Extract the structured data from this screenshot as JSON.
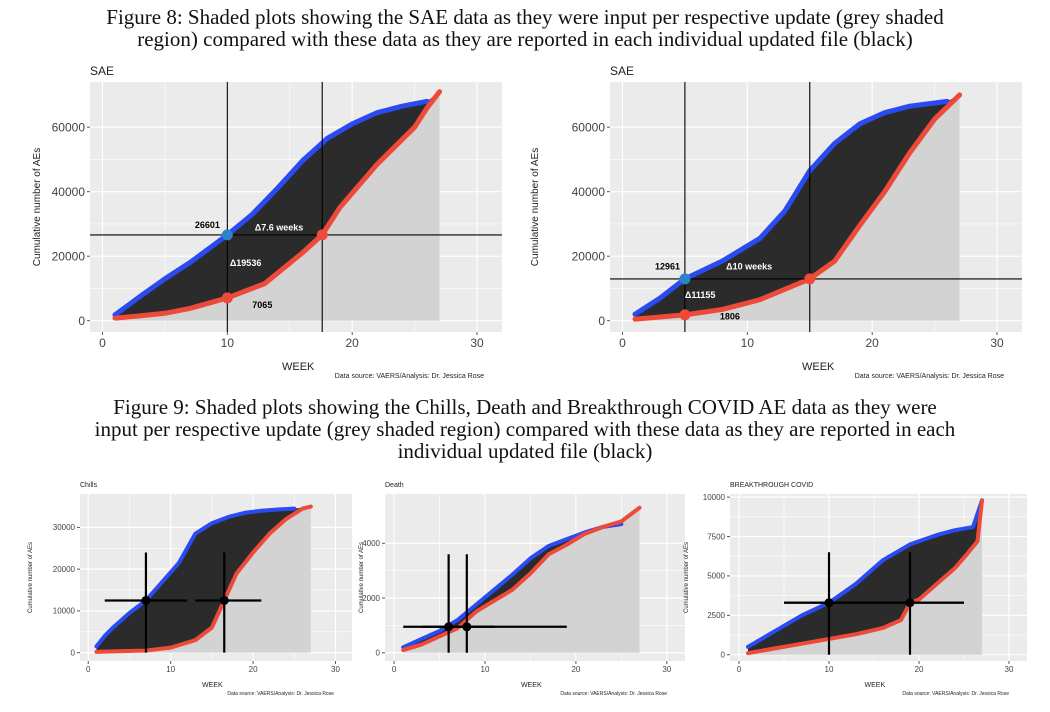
{
  "figure8": {
    "caption_lines": [
      "Figure 8:  Shaded plots showing the SAE data as they were input per respective update (grey shaded",
      "region) compared with these data as they are reported in each individual updated file (black)"
    ]
  },
  "figure9": {
    "caption_lines": [
      "Figure 9:  Shaded plots showing the Chills, Death and Breakthrough COVID AE data as they were",
      "input per respective update (grey shaded region) compared with these data as they are reported in each",
      "individual updated file (black)"
    ]
  },
  "colors": {
    "panel_bg": "#ebebeb",
    "grid": "#ffffff",
    "shade": "#d3d3d3",
    "dark_fill": "#2b2b2b",
    "blue": "#2b4bf2",
    "red": "#ee4a3a",
    "blue_point": "#2d83c8",
    "red_point": "#ee4a3a",
    "black": "#000000"
  },
  "chart_data": [
    {
      "type": "area",
      "title": "SAE",
      "xlabel": "WEEK",
      "ylabel": "Cumulative number of AEs",
      "source": "Data source: VAERS/Analysis: Dr. Jessica Rose",
      "xlim": [
        -1,
        32
      ],
      "ylim": [
        -3500,
        74000
      ],
      "xticks": [
        0,
        10,
        20,
        30
      ],
      "xtick_labels": [
        "0",
        "10",
        "20",
        "30"
      ],
      "yticks": [
        0,
        20000,
        40000,
        60000
      ],
      "ytick_labels": [
        "0",
        "20000",
        "40000",
        "60000"
      ],
      "grey_region": {
        "x": [
          1,
          3,
          5,
          7,
          10,
          13,
          16,
          19,
          22,
          25,
          27,
          27
        ],
        "y": [
          800,
          1500,
          2300,
          3800,
          7065,
          11500,
          21000,
          35000,
          48500,
          60000,
          70000,
          0
        ]
      },
      "input_series": {
        "name": "as input per update",
        "x": [
          1,
          3,
          5,
          7,
          10,
          12,
          14,
          16,
          18,
          20,
          22,
          24,
          26
        ],
        "y": [
          1800,
          7500,
          13000,
          18000,
          26601,
          33000,
          41000,
          49500,
          56500,
          61000,
          64500,
          66500,
          68000
        ]
      },
      "reported_series": {
        "name": "as reported in file",
        "x": [
          1,
          3,
          5,
          7,
          10,
          13,
          16,
          17.6,
          19,
          22,
          25,
          26,
          27
        ],
        "y": [
          800,
          1500,
          2300,
          3800,
          7065,
          11500,
          21000,
          26601,
          35000,
          48500,
          60000,
          66000,
          71000
        ]
      },
      "vlines": [
        10,
        17.6
      ],
      "hlines": [
        26601
      ],
      "points": [
        {
          "x": 10,
          "y": 26601,
          "color": "blue"
        },
        {
          "x": 17.6,
          "y": 26601,
          "color": "red"
        },
        {
          "x": 10,
          "y": 7065,
          "color": "red"
        }
      ],
      "annotations": [
        {
          "text": "26601",
          "x": 7.4,
          "y": 28700,
          "color": "black"
        },
        {
          "text": "Δ7.6 weeks",
          "x": 12.2,
          "y": 28000,
          "color": "white"
        },
        {
          "text": "Δ19536",
          "x": 10.2,
          "y": 17000,
          "color": "white"
        },
        {
          "text": "7065",
          "x": 12.0,
          "y": 4000,
          "color": "black"
        }
      ]
    },
    {
      "type": "area",
      "title": "SAE",
      "xlabel": "WEEK",
      "ylabel": "Cumulative number of AEs",
      "source": "Data source: VAERS/Analysis: Dr. Jessica Rose",
      "xlim": [
        -1,
        32
      ],
      "ylim": [
        -3500,
        74000
      ],
      "xticks": [
        0,
        10,
        20,
        30
      ],
      "xtick_labels": [
        "0",
        "10",
        "20",
        "30"
      ],
      "yticks": [
        0,
        20000,
        40000,
        60000
      ],
      "ytick_labels": [
        "0",
        "20000",
        "40000",
        "60000"
      ],
      "grey_region": {
        "x": [
          1,
          5,
          8,
          11,
          15,
          17,
          19,
          21,
          23,
          25,
          27,
          27
        ],
        "y": [
          500,
          1806,
          3500,
          6500,
          12961,
          18500,
          29500,
          40000,
          52000,
          62500,
          70000,
          0
        ]
      },
      "input_series": {
        "name": "as input per update",
        "x": [
          1,
          3,
          5,
          8,
          11,
          13,
          15,
          17,
          19,
          21,
          23,
          25,
          26
        ],
        "y": [
          2000,
          7000,
          12961,
          18500,
          25500,
          34000,
          46500,
          55000,
          61000,
          64500,
          66500,
          67500,
          68000
        ]
      },
      "reported_series": {
        "name": "as reported in file",
        "x": [
          1,
          5,
          8,
          11,
          15,
          17,
          19,
          21,
          23,
          25,
          27
        ],
        "y": [
          500,
          1806,
          3500,
          6500,
          12961,
          18500,
          29500,
          40000,
          52000,
          62500,
          70000
        ]
      },
      "vlines": [
        5,
        15
      ],
      "hlines": [
        12961
      ],
      "points": [
        {
          "x": 5,
          "y": 12961,
          "color": "blue"
        },
        {
          "x": 15,
          "y": 12961,
          "color": "red"
        },
        {
          "x": 5,
          "y": 1806,
          "color": "red"
        }
      ],
      "annotations": [
        {
          "text": "12961",
          "x": 2.6,
          "y": 15800,
          "color": "black"
        },
        {
          "text": "Δ10 weeks",
          "x": 8.3,
          "y": 15800,
          "color": "white"
        },
        {
          "text": "Δ11155",
          "x": 5.0,
          "y": 7000,
          "color": "white"
        },
        {
          "text": "1806",
          "x": 7.8,
          "y": 400,
          "color": "black"
        }
      ]
    },
    {
      "type": "area",
      "title": "Chills",
      "xlabel": "WEEK",
      "ylabel": "Cumulative number of AEs",
      "source": "Data source: VAERS/Analysis: Dr. Jessica Rose",
      "xlim": [
        -1,
        32
      ],
      "ylim": [
        -2000,
        38000
      ],
      "xticks": [
        0,
        10,
        20,
        30
      ],
      "xtick_labels": [
        "0",
        "10",
        "20",
        "30"
      ],
      "yticks": [
        0,
        10000,
        20000,
        30000
      ],
      "ytick_labels": [
        "0",
        "10000",
        "20000",
        "30000"
      ],
      "grey_region": {
        "x": [
          1,
          3,
          7,
          10,
          13,
          15,
          16.5,
          18,
          20,
          22,
          24,
          26,
          27,
          27
        ],
        "y": [
          200,
          300,
          500,
          1200,
          3000,
          6000,
          12500,
          19000,
          24000,
          28500,
          32000,
          34500,
          35000,
          0
        ]
      },
      "input_series": {
        "name": "as input per update",
        "x": [
          1,
          2,
          3,
          5,
          7,
          9,
          11,
          13,
          15,
          17,
          19,
          21,
          23,
          25
        ],
        "y": [
          1500,
          4000,
          6000,
          9500,
          12500,
          17000,
          21500,
          28500,
          31000,
          32500,
          33500,
          34000,
          34300,
          34500
        ]
      },
      "reported_series": {
        "name": "as reported in file",
        "x": [
          1,
          3,
          7,
          10,
          13,
          15,
          16.5,
          18,
          20,
          22,
          24,
          26,
          27
        ],
        "y": [
          200,
          300,
          500,
          1200,
          3000,
          6000,
          12500,
          19000,
          24000,
          28500,
          32000,
          34500,
          35000
        ]
      },
      "crosshairs": [
        {
          "x": 7,
          "y": 12500,
          "xrange": [
            2,
            12
          ],
          "yrange": [
            0,
            24000
          ]
        },
        {
          "x": 16.5,
          "y": 12500,
          "xrange": [
            13,
            21
          ],
          "yrange": [
            0,
            24000
          ]
        }
      ]
    },
    {
      "type": "area",
      "title": "Death",
      "xlabel": "WEEK",
      "ylabel": "Cumulative number of AEs",
      "source": "Data source: VAERS/Analysis: Dr. Jessica Rose",
      "xlim": [
        -1,
        32
      ],
      "ylim": [
        -300,
        5800
      ],
      "xticks": [
        0,
        10,
        20,
        30
      ],
      "xtick_labels": [
        "0",
        "10",
        "20",
        "30"
      ],
      "yticks": [
        0,
        2000,
        4000
      ],
      "ytick_labels": [
        "0",
        "2000",
        "4000"
      ],
      "grey_region": {
        "x": [
          1,
          3,
          5,
          7,
          9,
          11,
          13,
          15,
          17,
          19,
          21,
          23,
          25,
          27,
          27
        ],
        "y": [
          100,
          300,
          600,
          900,
          1500,
          1900,
          2300,
          2900,
          3600,
          3950,
          4350,
          4600,
          4800,
          5300,
          0
        ]
      },
      "input_series": {
        "name": "as input per update",
        "x": [
          1,
          3,
          5,
          7,
          9,
          11,
          13,
          15,
          17,
          19,
          21,
          23,
          25
        ],
        "y": [
          200,
          500,
          800,
          1200,
          1750,
          2300,
          2850,
          3450,
          3900,
          4150,
          4400,
          4600,
          4700
        ]
      },
      "reported_series": {
        "name": "as reported in file",
        "x": [
          1,
          3,
          5,
          7,
          9,
          11,
          13,
          15,
          17,
          19,
          21,
          23,
          25,
          27
        ],
        "y": [
          100,
          300,
          600,
          900,
          1500,
          1900,
          2300,
          2900,
          3600,
          3950,
          4350,
          4600,
          4800,
          5300
        ]
      },
      "crosshairs": [
        {
          "x": 6,
          "y": 950,
          "xrange": [
            1,
            11
          ],
          "yrange": [
            0,
            3600
          ]
        },
        {
          "x": 8,
          "y": 950,
          "xrange": [
            3,
            19
          ],
          "yrange": [
            0,
            3600
          ]
        }
      ]
    },
    {
      "type": "area",
      "title": "BREAKTHROUGH COVID",
      "xlabel": "WEEK",
      "ylabel": "Cumulative number of AEs",
      "source": "Data source: VAERS/Analysis: Dr. Jessica Rose",
      "xlim": [
        -1,
        32
      ],
      "ylim": [
        -400,
        10200
      ],
      "xticks": [
        0,
        10,
        20,
        30
      ],
      "xtick_labels": [
        "0",
        "10",
        "20",
        "30"
      ],
      "yticks": [
        0,
        2500,
        5000,
        7500,
        10000
      ],
      "ytick_labels": [
        "0",
        "2500",
        "5000",
        "7500",
        "10000"
      ],
      "grey_region": {
        "x": [
          1,
          4,
          7,
          10,
          13,
          16,
          18,
          19,
          20,
          22,
          24,
          25.5,
          26.5,
          27,
          27
        ],
        "y": [
          100,
          400,
          700,
          1000,
          1300,
          1700,
          2200,
          3300,
          3500,
          4500,
          5500,
          6500,
          7200,
          9800,
          0
        ]
      },
      "input_series": {
        "name": "as input per update",
        "x": [
          1,
          4,
          7,
          10,
          13,
          16,
          19,
          22,
          24,
          26,
          27
        ],
        "y": [
          500,
          1500,
          2500,
          3300,
          4500,
          6000,
          7000,
          7600,
          7900,
          8100,
          9800
        ]
      },
      "reported_series": {
        "name": "as reported in file",
        "x": [
          1,
          4,
          7,
          10,
          13,
          16,
          18,
          19,
          20,
          22,
          24,
          25.5,
          26.5,
          27
        ],
        "y": [
          100,
          400,
          700,
          1000,
          1300,
          1700,
          2200,
          3300,
          3500,
          4500,
          5500,
          6500,
          7200,
          9800
        ]
      },
      "crosshairs": [
        {
          "x": 10,
          "y": 3300,
          "xrange": [
            5,
            25
          ],
          "yrange": [
            0,
            6500
          ]
        },
        {
          "x": 19,
          "y": 3300,
          "xrange": [
            5,
            25
          ],
          "yrange": [
            0,
            6500
          ]
        }
      ]
    }
  ]
}
